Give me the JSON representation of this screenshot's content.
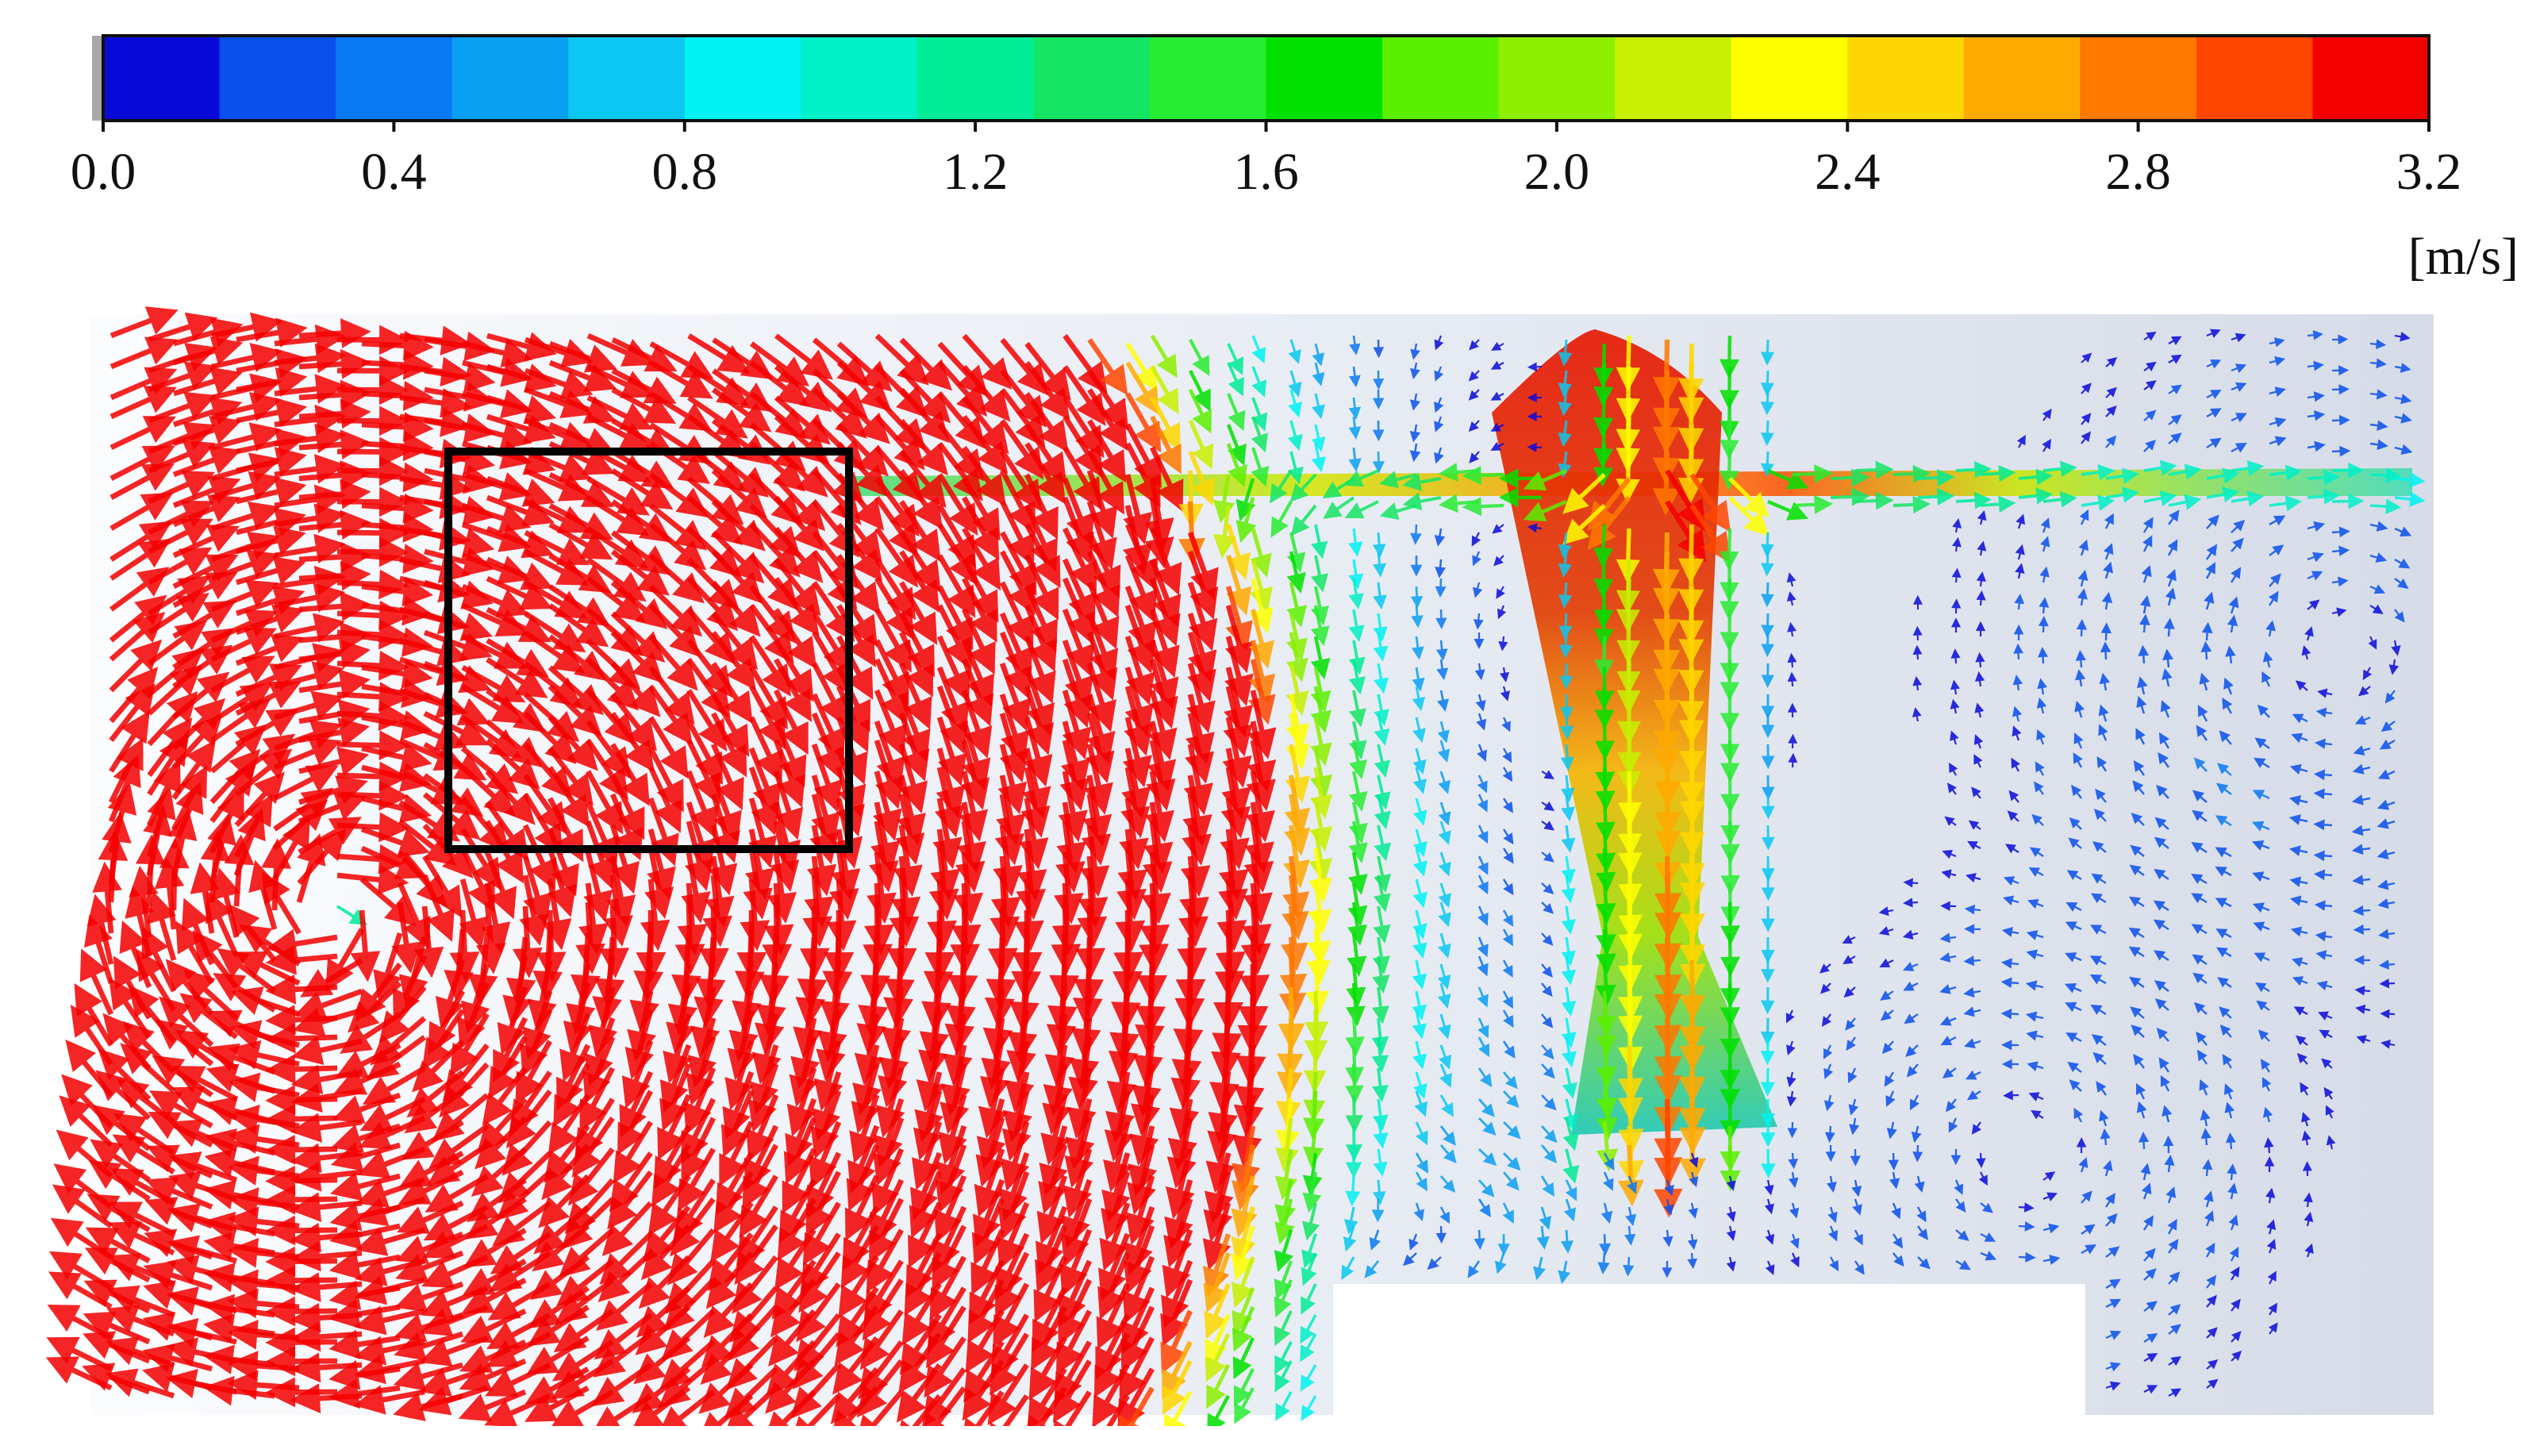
{
  "chart_data": {
    "type": "vector_field",
    "colorbar": {
      "lim": [
        0,
        3.2
      ],
      "ticks": [
        {
          "value": 0,
          "label": "0.0"
        },
        0.4,
        0.8,
        1.2,
        1.6,
        {
          "value": 2,
          "label": "2.0"
        },
        2.4,
        2.8,
        3.2
      ],
      "unit": "[m/s]",
      "colors": [
        "#0a0ad8",
        "#0a50ec",
        "#0a78f2",
        "#0aa0f2",
        "#0ac8f2",
        "#00f2f2",
        "#00f0c8",
        "#00ec96",
        "#14e664",
        "#28ec32",
        "#00e100",
        "#5af000",
        "#8cf000",
        "#c8f000",
        "#ffff00",
        "#ffd700",
        "#ffaa00",
        "#ff7800",
        "#ff4600",
        "#f50000"
      ]
    }
  }
}
